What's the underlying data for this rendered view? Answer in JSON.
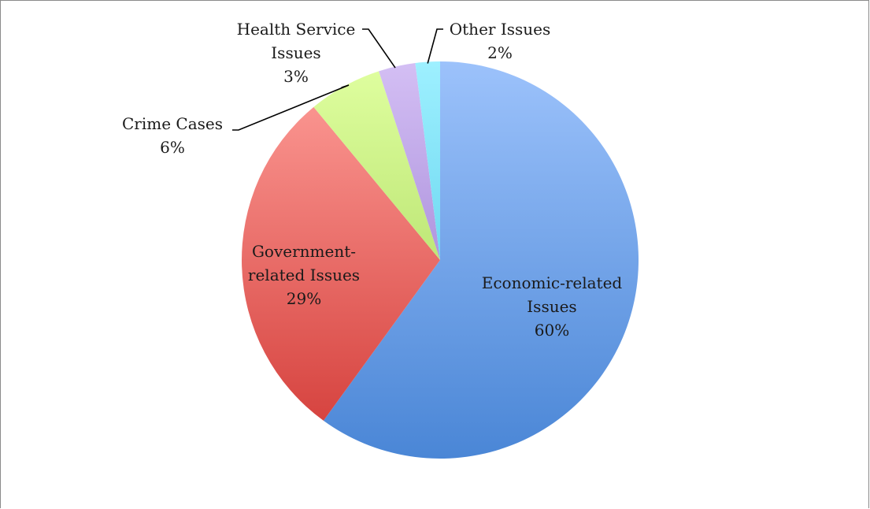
{
  "chart_data": {
    "type": "pie",
    "title": "",
    "legend": "none",
    "slices": [
      {
        "label": "Economic-related Issues",
        "value": 60,
        "value_label": "60%",
        "color": "#4a86d6",
        "color_light": "#9cc2fb"
      },
      {
        "label": "Government-related Issues",
        "value": 29,
        "value_label": "29%",
        "color": "#d23a36",
        "color_light": "#ff9f9a"
      },
      {
        "label": "Crime Cases",
        "value": 6,
        "value_label": "6%",
        "color": "#9ccf4e",
        "color_light": "#e0ffa0"
      },
      {
        "label": "Health Service Issues",
        "value": 3,
        "value_label": "3%",
        "color": "#8a6bc8",
        "color_light": "#d4bff4"
      },
      {
        "label": "Other Issues",
        "value": 2,
        "value_label": "2%",
        "color": "#3fc2e3",
        "color_light": "#9ef0ff"
      }
    ]
  }
}
